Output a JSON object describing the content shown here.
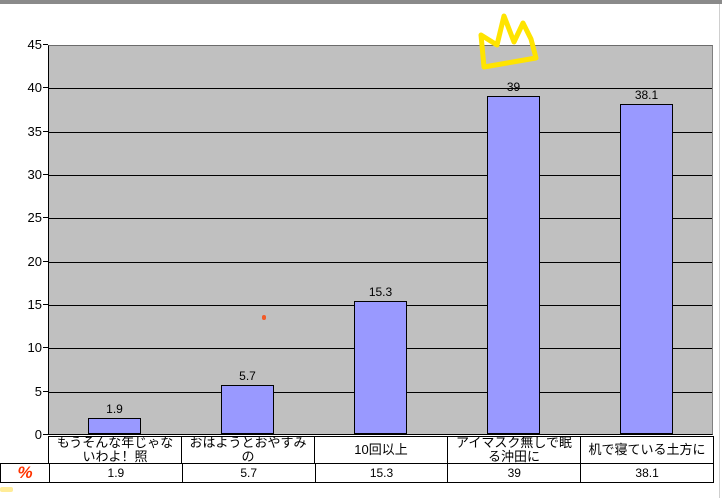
{
  "window": {
    "top_strip_color": "#8a8a8a",
    "background": "#FFFFFF"
  },
  "chart_data": {
    "type": "bar",
    "title": "",
    "categories": [
      "もうそんな年じゃないわよ！照",
      "おはようとおやすみの",
      "10回以上",
      "アイマスク無しで眠る沖田に",
      "机で寝ている土方に"
    ],
    "series": [
      {
        "name": "%",
        "values": [
          1.9,
          5.7,
          15.3,
          39,
          38.1
        ]
      }
    ],
    "value_labels": [
      "1.9",
      "5.7",
      "15.3",
      "39",
      "38.1"
    ],
    "y_ticks": [
      0,
      5,
      10,
      15,
      20,
      25,
      30,
      35,
      40,
      45
    ],
    "ylim": [
      0,
      45
    ],
    "xlabel": "",
    "ylabel": "",
    "grid": true,
    "legend_position": "data-table-left",
    "colors": {
      "bar_fill": "#9999FF",
      "bar_border": "#000000",
      "plot_bg": "#C0C0C0",
      "gridline": "#000000"
    }
  },
  "data_table": {
    "row_label": "%",
    "row_label_color": "#FF3300",
    "headers": [
      "もうそんな年じゃないわよ！照",
      "おはようとおやすみの",
      "10回以上",
      "アイマスク無しで眠る沖田に",
      "机で寝ている土方に"
    ],
    "values": [
      "1.9",
      "5.7",
      "15.3",
      "39",
      "38.1"
    ]
  },
  "annotations": {
    "crown_color": "#FFE400",
    "stray_dot_color": "#F25A28",
    "smudge_color": "#FFDD44"
  }
}
